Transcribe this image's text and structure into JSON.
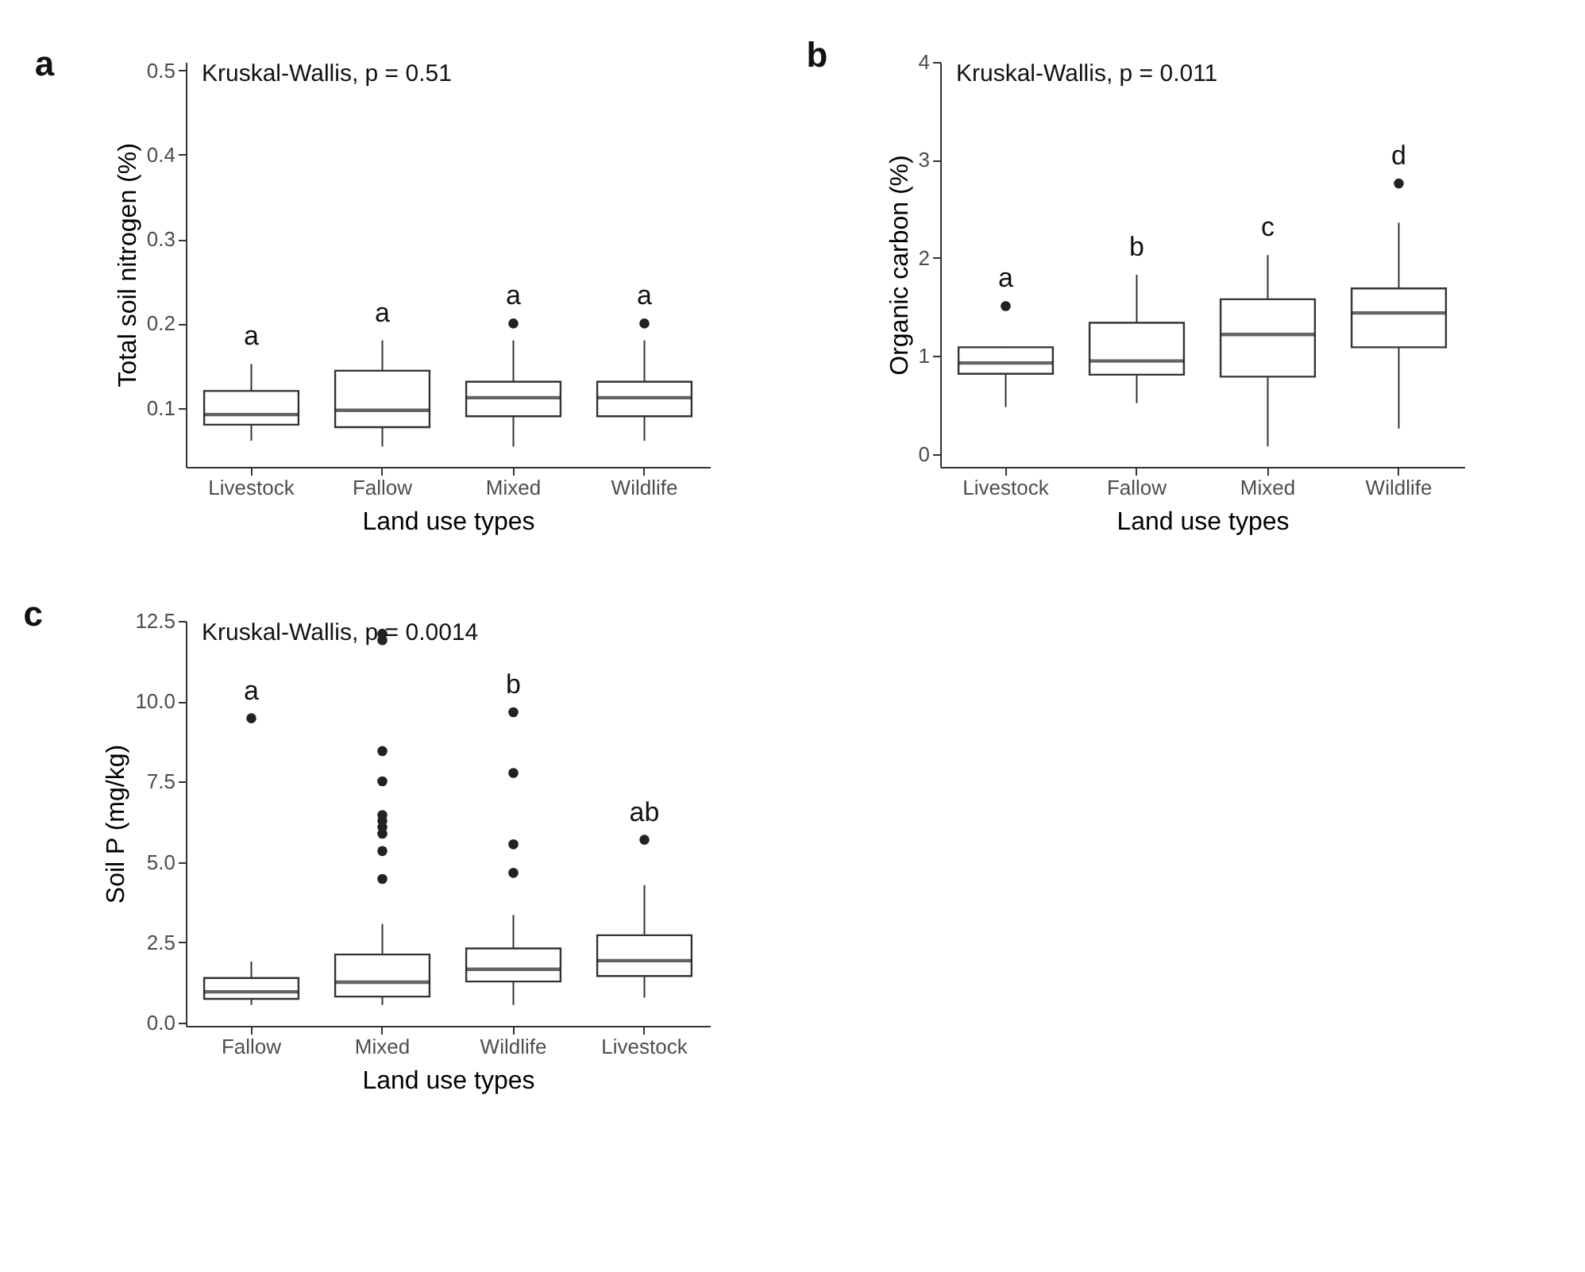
{
  "chart_data": [
    {
      "type": "box",
      "title": "a",
      "xlabel": "Land use types",
      "ylabel": "Total soil nitrogen (%)",
      "categories": [
        "Livestock",
        "Fallow",
        "Mixed",
        "Wildlife"
      ],
      "ylim": [
        0.03,
        0.51
      ],
      "yticks": [
        0.1,
        0.2,
        0.3,
        0.4,
        0.5
      ],
      "grid": false,
      "boxes": [
        {
          "low": 0.061,
          "q1": 0.08,
          "median": 0.092,
          "q3": 0.12,
          "high": 0.152
        },
        {
          "low": 0.054,
          "q1": 0.077,
          "median": 0.097,
          "q3": 0.144,
          "high": 0.18
        },
        {
          "low": 0.054,
          "q1": 0.09,
          "median": 0.112,
          "q3": 0.131,
          "high": 0.18,
          "outliers": [
            0.2
          ]
        },
        {
          "low": 0.061,
          "q1": 0.09,
          "median": 0.112,
          "q3": 0.131,
          "high": 0.18,
          "outliers": [
            0.2
          ]
        }
      ],
      "annotations": [
        "Kruskal-Wallis, p = 0.51",
        "a",
        "a",
        "a",
        "a"
      ]
    },
    {
      "type": "box",
      "title": "b",
      "xlabel": "Land use types",
      "ylabel": "Organic carbon (%)",
      "categories": [
        "Livestock",
        "Fallow",
        "Mixed",
        "Wildlife"
      ],
      "ylim": [
        -0.13,
        4
      ],
      "yticks": [
        0,
        1,
        2,
        3,
        4
      ],
      "grid": false,
      "boxes": [
        {
          "low": 0.48,
          "q1": 0.82,
          "median": 0.93,
          "q3": 1.09,
          "high": 1.1,
          "outliers": [
            1.51
          ]
        },
        {
          "low": 0.52,
          "q1": 0.81,
          "median": 0.95,
          "q3": 1.34,
          "high": 1.83
        },
        {
          "low": 0.08,
          "q1": 0.79,
          "median": 1.22,
          "q3": 1.58,
          "high": 2.03
        },
        {
          "low": 0.26,
          "q1": 1.09,
          "median": 1.44,
          "q3": 1.69,
          "high": 2.36,
          "outliers": [
            2.76
          ]
        }
      ],
      "annotations": [
        "Kruskal-Wallis, p = 0.011",
        "a",
        "b",
        "c",
        "d"
      ]
    },
    {
      "type": "box",
      "title": "c",
      "xlabel": "Land use types",
      "ylabel": "Soil P (mg/kg)",
      "categories": [
        "Fallow",
        "Mixed",
        "Wildlife",
        "Livestock"
      ],
      "ylim": [
        -0.1,
        12.5
      ],
      "yticks": [
        {
          "value": 0,
          "label": "0.0"
        },
        2.5,
        {
          "value": 5,
          "label": "5.0"
        },
        7.5,
        {
          "value": 10,
          "label": "10.0"
        },
        12.5
      ],
      "grid": false,
      "boxes": [
        {
          "low": 0.55,
          "q1": 0.74,
          "median": 0.96,
          "q3": 1.39,
          "high": 1.9,
          "outliers": [
            9.47
          ]
        },
        {
          "low": 0.55,
          "q1": 0.81,
          "median": 1.26,
          "q3": 2.12,
          "high": 3.07,
          "outliers": [
            4.47,
            5.34,
            5.88,
            6.08,
            6.28,
            6.46,
            7.51,
            8.45,
            11.9,
            12.1
          ]
        },
        {
          "low": 0.55,
          "q1": 1.28,
          "median": 1.66,
          "q3": 2.31,
          "high": 3.35,
          "outliers": [
            4.66,
            5.55,
            7.77,
            9.66
          ]
        },
        {
          "low": 0.78,
          "q1": 1.45,
          "median": 1.93,
          "q3": 2.72,
          "high": 4.28,
          "outliers": [
            5.69
          ]
        }
      ],
      "annotations": [
        "Kruskal-Wallis, p = 0.0014",
        "a",
        null,
        "b",
        "ab"
      ]
    }
  ]
}
